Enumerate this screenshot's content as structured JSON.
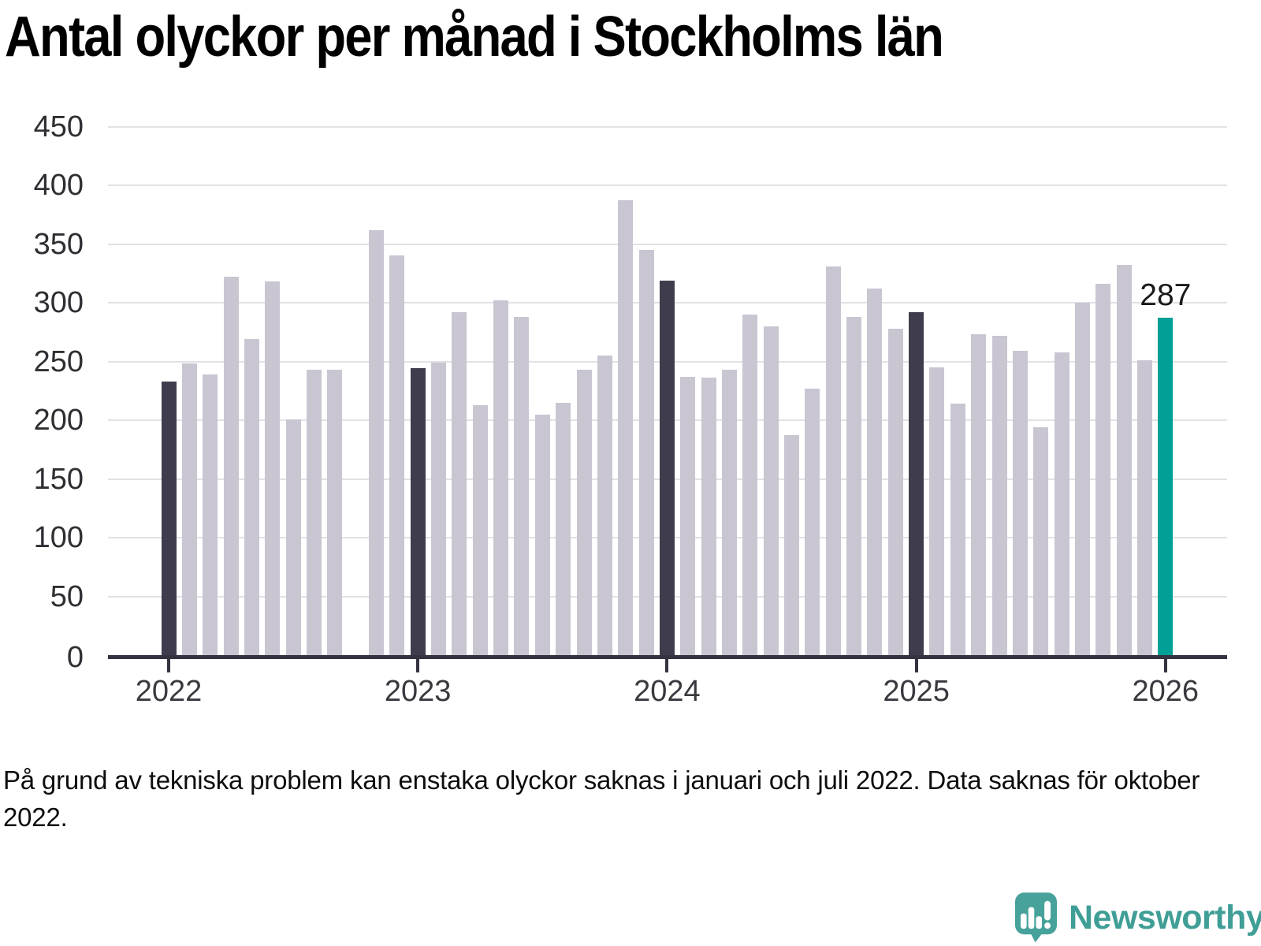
{
  "title": "Antal olyckor per månad i Stockholms län",
  "footnote": "På grund av tekniska problem kan enstaka olyckor saknas i januari och juli 2022. Data saknas för oktober 2022.",
  "branding": {
    "name": "Newsworthy",
    "icon": "newsworthy-speech-bubble-bar-chart-icon"
  },
  "colors": {
    "bar_default": "#c9c6d2",
    "bar_january": "#3f3d4d",
    "bar_accent": "#00a096",
    "gridline": "#e2e1e5",
    "axis": "#35333f",
    "logo_teal": "#47a29b"
  },
  "chart_data": {
    "type": "bar",
    "title": "Antal olyckor per månad i Stockholms län",
    "xlabel": "",
    "ylabel": "",
    "ylim": [
      0,
      450
    ],
    "grid": true,
    "legend": false,
    "months": [
      "2022-01",
      "2022-02",
      "2022-03",
      "2022-04",
      "2022-05",
      "2022-06",
      "2022-07",
      "2022-08",
      "2022-09",
      "2022-10",
      "2022-11",
      "2022-12",
      "2023-01",
      "2023-02",
      "2023-03",
      "2023-04",
      "2023-05",
      "2023-06",
      "2023-07",
      "2023-08",
      "2023-09",
      "2023-10",
      "2023-11",
      "2023-12",
      "2024-01",
      "2024-02",
      "2024-03",
      "2024-04",
      "2024-05",
      "2024-06",
      "2024-07",
      "2024-08",
      "2024-09",
      "2024-10",
      "2024-11",
      "2024-12",
      "2025-01",
      "2025-02",
      "2025-03",
      "2025-04",
      "2025-05",
      "2025-06",
      "2025-07",
      "2025-08",
      "2025-09",
      "2025-10",
      "2025-11",
      "2025-12",
      "2026-01"
    ],
    "values": [
      233,
      248,
      239,
      322,
      269,
      318,
      201,
      243,
      243,
      null,
      362,
      340,
      244,
      249,
      292,
      213,
      302,
      288,
      205,
      215,
      243,
      255,
      387,
      345,
      319,
      237,
      236,
      243,
      290,
      280,
      187,
      227,
      331,
      288,
      312,
      278,
      292,
      245,
      214,
      273,
      272,
      259,
      194,
      258,
      300,
      316,
      332,
      251,
      287
    ],
    "missing_months": [
      "2022-10"
    ],
    "dark_months": [
      "2022-01",
      "2023-01",
      "2024-01",
      "2025-01"
    ],
    "accent_months": [
      "2026-01"
    ],
    "annotation": {
      "month": "2026-01",
      "label": "287"
    },
    "y_ticks": [
      0,
      50,
      100,
      150,
      200,
      250,
      300,
      350,
      400,
      450
    ],
    "x_tick_years": [
      "2022",
      "2023",
      "2024",
      "2025",
      "2026"
    ]
  }
}
